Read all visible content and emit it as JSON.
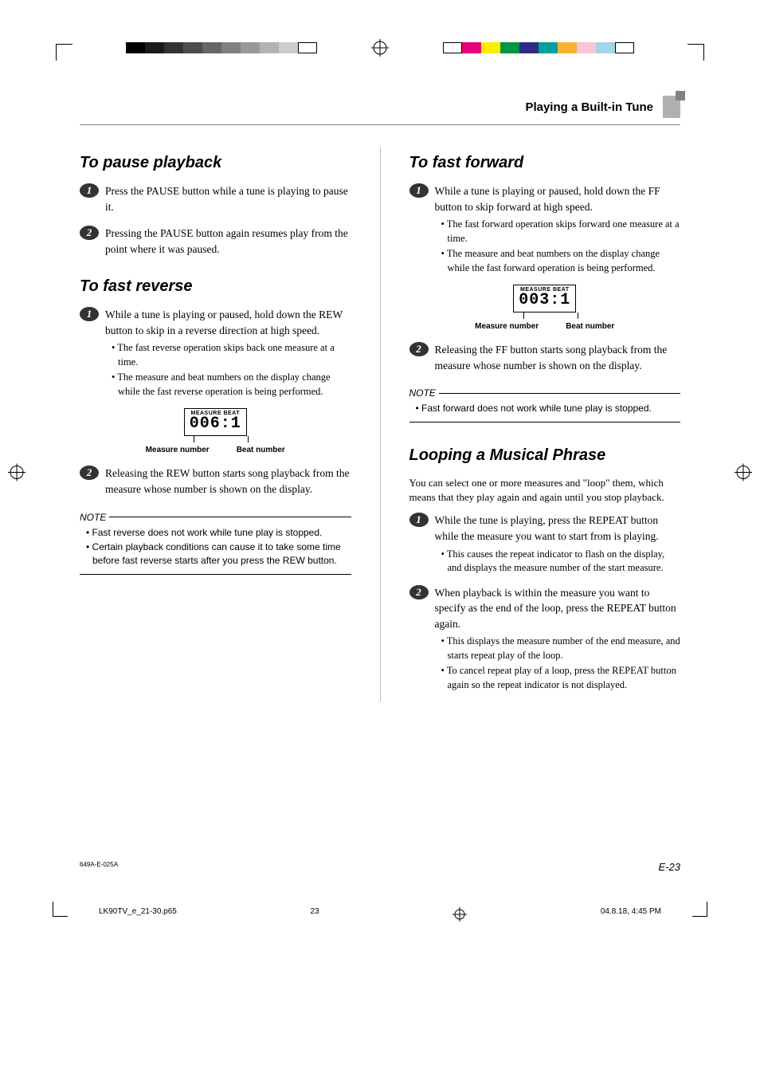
{
  "printerMarks": {
    "grayscale": [
      "#000000",
      "#1a1a1a",
      "#333333",
      "#4d4d4d",
      "#666666",
      "#808080",
      "#999999",
      "#b3b3b3",
      "#cccccc",
      "#ffffff"
    ],
    "colors": [
      "#ffffff",
      "#e6007e",
      "#ffed00",
      "#009640",
      "#2d2e83",
      "#00a19a",
      "#f9b233",
      "#f5c6d6",
      "#a3d4e8",
      "#ffffff"
    ]
  },
  "header": {
    "section": "Playing a Built-in Tune"
  },
  "left": {
    "pause": {
      "title": "To pause playback",
      "steps": [
        {
          "n": "1",
          "text": "Press the PAUSE button while a tune is playing to pause it."
        },
        {
          "n": "2",
          "text": "Pressing the PAUSE button again resumes play from the point where it was paused."
        }
      ]
    },
    "reverse": {
      "title": "To fast reverse",
      "step1": {
        "n": "1",
        "text": "While a tune is playing or paused, hold down the REW button to skip in a reverse direction at high speed.",
        "bullets": [
          "The fast reverse operation skips back one measure at a time.",
          "The measure and beat numbers on the display change while the fast reverse operation is being performed."
        ]
      },
      "display": {
        "topLabel": "MEASURE  BEAT",
        "lcd": "006:1",
        "leftCaption": "Measure number",
        "rightCaption": "Beat number"
      },
      "step2": {
        "n": "2",
        "text": "Releasing the REW button starts song playback from the measure whose number is shown on the display."
      },
      "note": {
        "label": "NOTE",
        "items": [
          "Fast reverse does not work while tune play is stopped.",
          "Certain playback conditions can cause it to take some time before fast reverse starts after you press the REW button."
        ]
      }
    }
  },
  "right": {
    "forward": {
      "title": "To fast forward",
      "step1": {
        "n": "1",
        "text": "While a tune is playing or paused, hold down the FF button to skip forward at high speed.",
        "bullets": [
          "The fast forward operation skips forward one measure at a time.",
          "The measure and beat numbers on the display change while the fast forward operation is being performed."
        ]
      },
      "display": {
        "topLabel": "MEASURE  BEAT",
        "lcd": "003:1",
        "leftCaption": "Measure number",
        "rightCaption": "Beat number"
      },
      "step2": {
        "n": "2",
        "text": "Releasing the FF button starts song playback from the measure whose number is shown on the display."
      },
      "note": {
        "label": "NOTE",
        "items": [
          "Fast forward does not work while tune play is stopped."
        ]
      }
    },
    "loop": {
      "title": "Looping a Musical Phrase",
      "intro": "You can select one or more measures and \"loop\" them, which means that they play again and again until you stop playback.",
      "step1": {
        "n": "1",
        "text": "While the tune is playing, press the REPEAT button while the measure you want to start from is playing.",
        "bullets": [
          "This causes the repeat indicator to flash on the display, and displays the measure number of the start measure."
        ]
      },
      "step2": {
        "n": "2",
        "text": "When playback is within the measure you want to specify as the end of the loop, press the REPEAT button again.",
        "bullets": [
          "This displays the measure number of the end measure, and starts repeat play of the loop.",
          "To cancel repeat play of a loop, press the REPEAT button again so the repeat indicator is not displayed."
        ]
      }
    }
  },
  "footer": {
    "code": "649A-E-025A",
    "page": "E-23",
    "slugFile": "LK90TV_e_21-30.p65",
    "slugPage": "23",
    "slugDate": "04.8.18, 4:45 PM"
  }
}
